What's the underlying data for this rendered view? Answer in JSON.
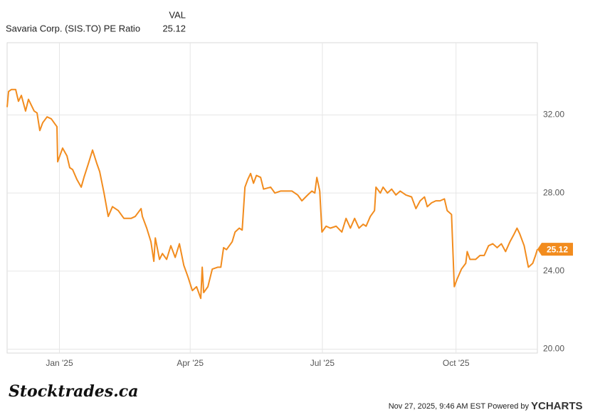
{
  "chart_data": {
    "type": "line",
    "value_header": "VAL",
    "watermark": "Stocktrades.ca",
    "timestamp": "Nov 27, 2025, 9:46 AM EST Powered by",
    "brand": "YCHARTS",
    "x": [
      0,
      1,
      2.9,
      5.9,
      7.8,
      9.8,
      12.7,
      14.7,
      18.6,
      20.6,
      22.5,
      24.5,
      27.5,
      30.4,
      33.3,
      34.3,
      34.8,
      38.2,
      41.2,
      43.1,
      45.1,
      48,
      51,
      52.9,
      55.9,
      58.8,
      61.8,
      63.7,
      66.7,
      69.6,
      72.5,
      76.5,
      80.4,
      85.3,
      88.2,
      92.2,
      93.1,
      96.1,
      99,
      101,
      102,
      104.9,
      106.9,
      109.8,
      112.7,
      115.7,
      118.6,
      121.6,
      124.5,
      127.5,
      130.4,
      133.3,
      134.3,
      135.3,
      138.2,
      141.2,
      145.1,
      147.1,
      149,
      151,
      154.9,
      156.9,
      159.8,
      161.8,
      163.7,
      165.7,
      167.6,
      169.6,
      171.6,
      174.5,
      176.5,
      181.4,
      184.3,
      188.2,
      192.2,
      196.1,
      200,
      202.9,
      206.9,
      209.8,
      211.8,
      213.2,
      215.2,
      216.7,
      219.6,
      222.5,
      226.5,
      230.4,
      233.3,
      236.3,
      239.2,
      242.2,
      245.1,
      247.1,
      250,
      252.9,
      253.9,
      256.9,
      258.8,
      261.8,
      264.7,
      267.6,
      270.6,
      274.5,
      278.4,
      281.4,
      284.3,
      287.3,
      289.2,
      292.2,
      295.1,
      298,
      301,
      302.9,
      305.9,
      307.8,
      309.8,
      312.7,
      315.7,
      316.7,
      318.6,
      322.5,
      325.5,
      328.4,
      331.4,
      334.3,
      337.3,
      340.2,
      343.1,
      346.1,
      349,
      351,
      352.9,
      355.9,
      358.8,
      361.8,
      363.7,
      365
    ],
    "series": [
      {
        "name": "Savaria Corp. (SIS.TO) PE Ratio",
        "color": "#f28c1e",
        "values": [
          32.4,
          33.2,
          33.3,
          33.3,
          32.7,
          33.0,
          32.2,
          32.8,
          32.2,
          32.1,
          31.2,
          31.6,
          31.9,
          31.8,
          31.5,
          31.4,
          29.6,
          30.3,
          29.9,
          29.3,
          29.2,
          28.7,
          28.3,
          28.8,
          29.5,
          30.2,
          29.5,
          29.1,
          28.0,
          26.8,
          27.3,
          27.1,
          26.7,
          26.7,
          26.8,
          27.2,
          26.8,
          26.2,
          25.5,
          24.5,
          25.7,
          24.6,
          24.9,
          24.6,
          25.3,
          24.7,
          25.4,
          24.3,
          23.7,
          23.0,
          23.2,
          22.6,
          24.2,
          22.9,
          23.2,
          24.1,
          24.2,
          24.2,
          25.2,
          25.1,
          25.5,
          26.0,
          26.2,
          26.1,
          28.3,
          28.7,
          29.0,
          28.5,
          28.9,
          28.8,
          28.2,
          28.3,
          28.0,
          28.1,
          28.1,
          28.1,
          27.9,
          27.6,
          27.9,
          28.1,
          28.0,
          28.8,
          28.1,
          26.0,
          26.3,
          26.2,
          26.3,
          26.0,
          26.7,
          26.2,
          26.7,
          26.2,
          26.4,
          26.3,
          26.8,
          27.1,
          28.3,
          28.0,
          28.3,
          28.0,
          28.2,
          27.9,
          28.1,
          27.9,
          27.8,
          27.2,
          27.6,
          27.8,
          27.3,
          27.5,
          27.6,
          27.6,
          27.7,
          27.1,
          26.9,
          23.2,
          23.6,
          24.1,
          24.4,
          25.0,
          24.6,
          24.6,
          24.8,
          24.8,
          25.3,
          25.4,
          25.2,
          25.4,
          25.0,
          25.5,
          25.9,
          26.2,
          25.9,
          25.3,
          24.2,
          24.4,
          24.8,
          25.12
        ]
      }
    ],
    "xlim": [
      0,
      365
    ],
    "xticks": [
      {
        "value": 36,
        "label": "Jan '25"
      },
      {
        "value": 126,
        "label": "Apr '25"
      },
      {
        "value": 217,
        "label": "Jul '25"
      },
      {
        "value": 309,
        "label": "Oct '25"
      }
    ],
    "ylim": [
      19.8,
      35.7
    ],
    "yticks": [
      {
        "value": 20,
        "label": "20.00"
      },
      {
        "value": 24,
        "label": "24.00"
      },
      {
        "value": 28,
        "label": "28.00"
      },
      {
        "value": 32,
        "label": "32.00"
      }
    ],
    "grid": true
  }
}
